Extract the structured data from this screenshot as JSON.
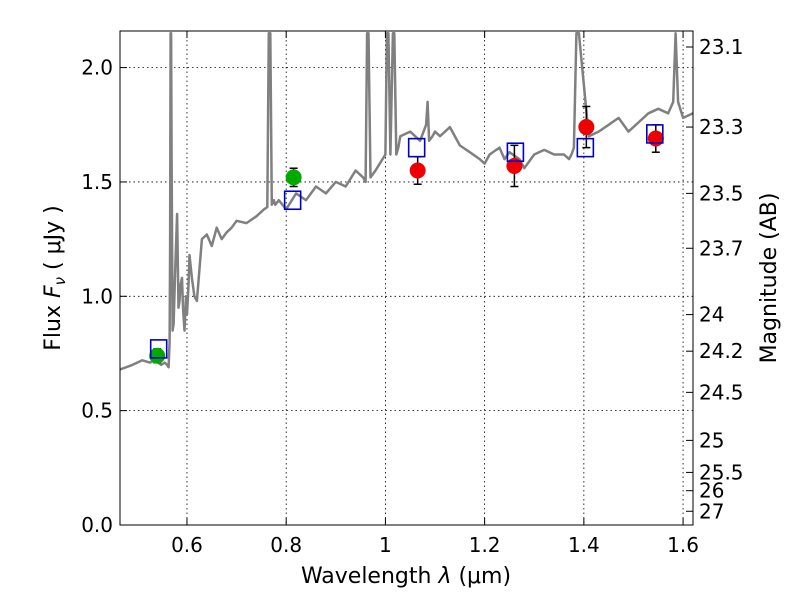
{
  "chart_data": {
    "type": "scatter",
    "xlabel": "Wavelength  λ (μm)",
    "ylabel": "Flux  F_ν  ( μJy )",
    "ylabel_parts": {
      "pre": "Flux  ",
      "italic": "F",
      "sub": "ν",
      "post": "  ( μJy )"
    },
    "xlabel_parts": {
      "pre": "Wavelength  ",
      "italic": "λ",
      "post": " (μm)"
    },
    "right_ylabel": "Magnitude (AB)",
    "xlim": [
      0.465,
      1.62
    ],
    "ylim": [
      0.0,
      2.16
    ],
    "grid": true,
    "x_ticks": [
      0.6,
      0.8,
      1.0,
      1.2,
      1.4,
      1.6
    ],
    "x_tick_labels": [
      "0.6",
      "0.8",
      "1",
      "1.2",
      "1.4",
      "1.6"
    ],
    "y_ticks": [
      0.0,
      0.5,
      1.0,
      1.5,
      2.0
    ],
    "y_tick_labels": [
      "0.0",
      "0.5",
      "1.0",
      "1.5",
      "2.0"
    ],
    "right_ticks": [
      {
        "label": "23.1",
        "flux": 2.09
      },
      {
        "label": "23.3",
        "flux": 1.74
      },
      {
        "label": "23.5",
        "flux": 1.45
      },
      {
        "label": "23.7",
        "flux": 1.21
      },
      {
        "label": "24",
        "flux": 0.92
      },
      {
        "label": "24.2",
        "flux": 0.76
      },
      {
        "label": "24.5",
        "flux": 0.58
      },
      {
        "label": "25",
        "flux": 0.37
      },
      {
        "label": "25.5",
        "flux": 0.23
      },
      {
        "label": "26",
        "flux": 0.15
      },
      {
        "label": "27",
        "flux": 0.06
      }
    ],
    "spectrum": {
      "name": "model spectrum",
      "color": "#808080",
      "x": [
        0.465,
        0.49,
        0.51,
        0.525,
        0.535,
        0.548,
        0.555,
        0.56,
        0.563,
        0.565,
        0.566,
        0.567,
        0.568,
        0.569,
        0.571,
        0.573,
        0.576,
        0.58,
        0.583,
        0.585,
        0.587,
        0.59,
        0.592,
        0.595,
        0.598,
        0.6,
        0.603,
        0.605,
        0.61,
        0.615,
        0.62,
        0.63,
        0.64,
        0.65,
        0.66,
        0.67,
        0.68,
        0.69,
        0.7,
        0.72,
        0.74,
        0.755,
        0.762,
        0.765,
        0.768,
        0.771,
        0.775,
        0.778,
        0.785,
        0.8,
        0.82,
        0.84,
        0.86,
        0.88,
        0.9,
        0.92,
        0.94,
        0.955,
        0.96,
        0.963,
        0.966,
        0.97,
        0.98,
        1.0,
        1.003,
        1.006,
        1.01,
        1.015,
        1.018,
        1.022,
        1.026,
        1.03,
        1.05,
        1.07,
        1.082,
        1.085,
        1.088,
        1.095,
        1.1,
        1.11,
        1.13,
        1.15,
        1.17,
        1.19,
        1.2,
        1.21,
        1.23,
        1.24,
        1.25,
        1.27,
        1.28,
        1.3,
        1.32,
        1.34,
        1.36,
        1.37,
        1.375,
        1.38,
        1.385,
        1.39,
        1.41,
        1.43,
        1.45,
        1.47,
        1.49,
        1.51,
        1.53,
        1.55,
        1.57,
        1.58,
        1.585,
        1.59,
        1.6,
        1.62
      ],
      "y": [
        0.68,
        0.7,
        0.72,
        0.71,
        0.72,
        0.7,
        0.71,
        0.7,
        0.69,
        0.8,
        1.2,
        2.15,
        2.15,
        1.6,
        0.85,
        0.88,
        1.1,
        1.36,
        0.95,
        0.98,
        1.05,
        1.08,
        0.95,
        0.85,
        1.0,
        0.92,
        1.05,
        1.18,
        1.08,
        1.0,
        0.98,
        1.25,
        1.27,
        1.22,
        1.3,
        1.25,
        1.28,
        1.3,
        1.33,
        1.32,
        1.35,
        1.38,
        1.39,
        2.15,
        2.15,
        1.4,
        1.42,
        1.4,
        1.42,
        1.38,
        1.45,
        1.42,
        1.48,
        1.45,
        1.5,
        1.48,
        1.55,
        1.52,
        1.5,
        2.15,
        2.15,
        1.52,
        1.55,
        1.62,
        2.15,
        2.15,
        1.62,
        2.15,
        2.15,
        1.62,
        1.65,
        1.7,
        1.72,
        1.68,
        1.75,
        1.85,
        1.68,
        1.7,
        1.72,
        1.7,
        1.74,
        1.66,
        1.63,
        1.6,
        1.58,
        1.62,
        1.65,
        1.6,
        1.63,
        1.6,
        1.56,
        1.62,
        1.64,
        1.62,
        1.62,
        1.6,
        1.62,
        1.65,
        2.15,
        2.15,
        1.7,
        1.72,
        1.75,
        1.78,
        1.72,
        1.76,
        1.8,
        1.82,
        1.8,
        1.85,
        2.15,
        1.85,
        1.78,
        1.8
      ]
    },
    "observed": [
      {
        "x": 0.54,
        "y": 0.74,
        "err": 0.03,
        "color": "#00aa00"
      },
      {
        "x": 0.815,
        "y": 1.52,
        "err": 0.04,
        "color": "#00aa00"
      },
      {
        "x": 1.065,
        "y": 1.55,
        "err": 0.06,
        "color": "#ee0000"
      },
      {
        "x": 1.26,
        "y": 1.57,
        "err": 0.09,
        "color": "#ee0000"
      },
      {
        "x": 1.405,
        "y": 1.74,
        "err": 0.09,
        "color": "#ee0000"
      },
      {
        "x": 1.545,
        "y": 1.69,
        "err": 0.06,
        "color": "#ee0000"
      }
    ],
    "model_points": {
      "color": "#0000cc",
      "points": [
        {
          "x": 0.543,
          "y": 0.77
        },
        {
          "x": 0.813,
          "y": 1.42
        },
        {
          "x": 1.063,
          "y": 1.65
        },
        {
          "x": 1.262,
          "y": 1.63
        },
        {
          "x": 1.403,
          "y": 1.65
        },
        {
          "x": 1.543,
          "y": 1.71
        }
      ]
    }
  }
}
